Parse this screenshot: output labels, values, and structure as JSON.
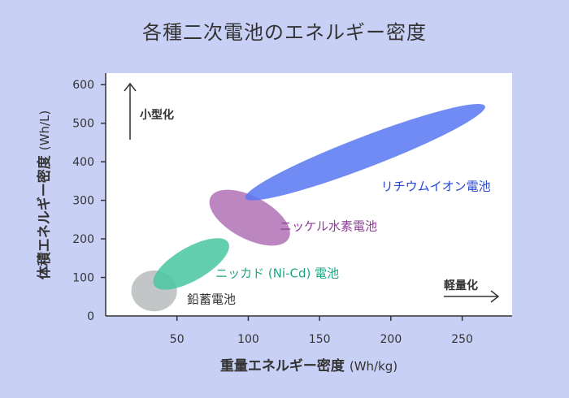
{
  "title": "各種二次電池のエネルギー密度",
  "chart_data": {
    "type": "scatter",
    "title": "各種二次電池のエネルギー密度",
    "xlabel": {
      "main": "重量エネルギー密度",
      "unit": "(Wh/kg)"
    },
    "ylabel": {
      "main": "体積エネルギー密度",
      "unit": "(Wh/L)"
    },
    "xlim": [
      0,
      285
    ],
    "ylim": [
      0,
      630
    ],
    "x_ticks": [
      50,
      100,
      150,
      200,
      250
    ],
    "y_ticks": [
      0,
      100,
      200,
      300,
      400,
      500,
      600
    ],
    "grid": false,
    "annotations": {
      "up": "小型化",
      "right": "軽量化"
    },
    "regions": [
      {
        "name": "鉛蓄電池",
        "color": "#c3c6c7",
        "label_color": "#333333",
        "label_at": [
          57,
          45
        ],
        "center": [
          34,
          65
        ],
        "rx": 16,
        "ry": 53,
        "angle_deg": 0
      },
      {
        "name": "ニッカド (Ni-Cd) 電池",
        "color": "#49c7a0",
        "label_color": "#1fa685",
        "label_at": [
          77,
          113
        ],
        "center": [
          60,
          135
        ],
        "rx": 30,
        "ry": 43,
        "angle_deg": -30
      },
      {
        "name": "ニッケル水素電池",
        "color": "#b071b5",
        "label_color": "#8e3c99",
        "label_at": [
          122,
          235
        ],
        "center": [
          101,
          255
        ],
        "rx": 31,
        "ry": 55,
        "angle_deg": 28
      },
      {
        "name": "リチウムイオン電池",
        "color": "#5877f3",
        "label_color": "#2446d6",
        "label_at": [
          193,
          338
        ],
        "center": [
          182,
          425
        ],
        "rx": 90,
        "ry": 40,
        "angle_deg": -21
      }
    ]
  }
}
